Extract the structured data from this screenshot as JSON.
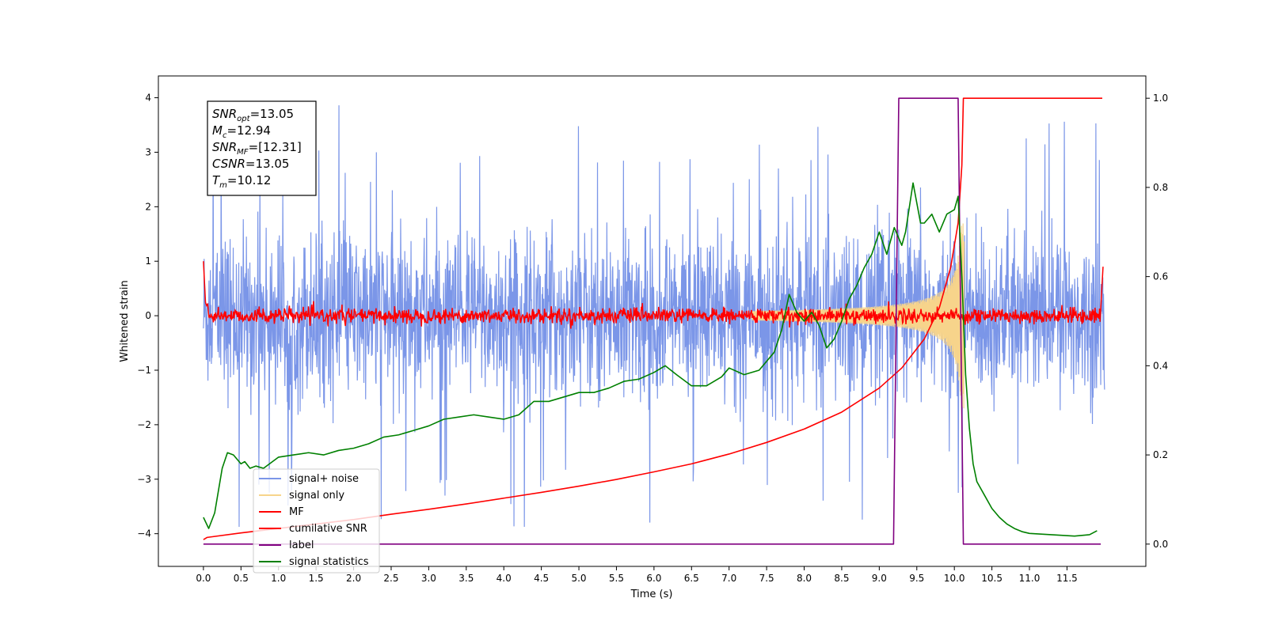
{
  "chart_data": {
    "type": "line",
    "xlabel": "Time (s)",
    "ylabel": "Whitened strain",
    "xlim": [
      -0.6,
      12.55
    ],
    "ylim": [
      -4.6,
      4.4
    ],
    "y2lim": [
      -0.05,
      1.05
    ],
    "xticks": [
      0.0,
      0.5,
      1.0,
      1.5,
      2.0,
      2.5,
      3.0,
      3.5,
      4.0,
      4.5,
      5.0,
      5.5,
      6.0,
      6.5,
      7.0,
      7.5,
      8.0,
      8.5,
      9.0,
      9.5,
      10.0,
      10.5,
      11.0,
      11.5
    ],
    "xtick_labels": [
      "0.0",
      "0.5",
      "1.0",
      "1.5",
      "2.0",
      "2.5",
      "3.0",
      "3.5",
      "4.0",
      "4.5",
      "5.0",
      "5.5",
      "6.0",
      "6.5",
      "7.0",
      "7.5",
      "8.0",
      "8.5",
      "9.0",
      "9.5",
      "10.0",
      "10.5",
      "11.0",
      "11.5"
    ],
    "yticks": [
      -4,
      -3,
      -2,
      -1,
      0,
      1,
      2,
      3,
      4
    ],
    "ytick_labels": [
      "−4",
      "−3",
      "−2",
      "−1",
      "0",
      "1",
      "2",
      "3",
      "4"
    ],
    "y2ticks": [
      0.0,
      0.2,
      0.4,
      0.6,
      0.8,
      1.0
    ],
    "y2tick_labels": [
      "0.0",
      "0.2",
      "0.4",
      "0.6",
      "0.8",
      "1.0"
    ],
    "grid": false,
    "legend_position": "lower-left",
    "annotation": {
      "lines": [
        {
          "sym": "SNR",
          "sub": "opt",
          "val": "=13.05"
        },
        {
          "sym": "M",
          "sub": "c",
          "val": "=12.94"
        },
        {
          "sym": "SNR",
          "sub": "MF",
          "val": "=[12.31]"
        },
        {
          "sym": "CSNR",
          "sub": "",
          "val": "=13.05"
        },
        {
          "sym": "T",
          "sub": "m",
          "val": "=10.12"
        }
      ]
    },
    "series": [
      {
        "name": "signal+ noise",
        "axis": "left",
        "color": "#7b96e8",
        "description": "whitened noise + signal, amplitude about ±2 with spikes to about ±4, t from 0 to 12"
      },
      {
        "name": "signal only",
        "axis": "left",
        "color": "#f7d48b",
        "description": "chirp envelope growing from ~0 near t=7.5 to ~±1.7 at t≈10.1 then ending"
      },
      {
        "name": "MF",
        "axis": "left",
        "color": "#ff0000",
        "description": "matched filter output, small noise around 0 (±0.25), starts at 1.0 and ends near 0.9"
      },
      {
        "name": "cumilative SNR",
        "axis": "right",
        "color": "#ff0000",
        "x": [
          0.0,
          0.05,
          0.5,
          1.0,
          1.5,
          2.0,
          2.5,
          3.0,
          3.5,
          4.0,
          4.5,
          5.0,
          5.5,
          6.0,
          6.5,
          7.0,
          7.5,
          8.0,
          8.5,
          9.0,
          9.3,
          9.6,
          9.8,
          9.95,
          10.05,
          10.1,
          10.12,
          10.2,
          11.0,
          11.97
        ],
        "y": [
          0.01,
          0.015,
          0.025,
          0.035,
          0.045,
          0.055,
          0.067,
          0.078,
          0.09,
          0.103,
          0.116,
          0.13,
          0.145,
          0.162,
          0.18,
          0.202,
          0.228,
          0.258,
          0.296,
          0.35,
          0.395,
          0.46,
          0.53,
          0.62,
          0.72,
          0.85,
          1.0,
          1.0,
          1.0,
          1.0
        ]
      },
      {
        "name": "label",
        "axis": "right",
        "color": "#800080",
        "x": [
          0.0,
          9.19,
          9.26,
          10.05,
          10.12,
          11.95
        ],
        "y": [
          0.0,
          0.0,
          1.0,
          1.0,
          0.0,
          0.0
        ]
      },
      {
        "name": "signal statistics",
        "axis": "right",
        "color": "#008000",
        "x": [
          0.0,
          0.07,
          0.15,
          0.25,
          0.32,
          0.4,
          0.5,
          0.55,
          0.62,
          0.7,
          0.8,
          1.0,
          1.2,
          1.4,
          1.6,
          1.8,
          2.0,
          2.2,
          2.4,
          2.6,
          2.8,
          3.0,
          3.2,
          3.4,
          3.6,
          3.8,
          4.0,
          4.2,
          4.4,
          4.6,
          4.8,
          5.0,
          5.2,
          5.4,
          5.6,
          5.8,
          6.0,
          6.15,
          6.3,
          6.5,
          6.7,
          6.9,
          7.0,
          7.2,
          7.4,
          7.6,
          7.7,
          7.8,
          7.9,
          8.0,
          8.1,
          8.2,
          8.3,
          8.4,
          8.5,
          8.6,
          8.7,
          8.8,
          8.9,
          9.0,
          9.1,
          9.2,
          9.3,
          9.35,
          9.45,
          9.55,
          9.6,
          9.7,
          9.8,
          9.9,
          10.0,
          10.05,
          10.1,
          10.15,
          10.2,
          10.25,
          10.3,
          10.4,
          10.5,
          10.6,
          10.7,
          10.8,
          10.9,
          11.0,
          11.2,
          11.4,
          11.6,
          11.8,
          11.9
        ],
        "y": [
          0.06,
          0.035,
          0.07,
          0.17,
          0.205,
          0.2,
          0.18,
          0.185,
          0.17,
          0.175,
          0.17,
          0.195,
          0.2,
          0.205,
          0.2,
          0.21,
          0.215,
          0.225,
          0.24,
          0.245,
          0.255,
          0.265,
          0.28,
          0.285,
          0.29,
          0.285,
          0.28,
          0.29,
          0.32,
          0.32,
          0.33,
          0.34,
          0.34,
          0.35,
          0.365,
          0.37,
          0.385,
          0.4,
          0.38,
          0.355,
          0.355,
          0.375,
          0.395,
          0.38,
          0.39,
          0.43,
          0.48,
          0.56,
          0.52,
          0.5,
          0.52,
          0.49,
          0.44,
          0.46,
          0.5,
          0.55,
          0.58,
          0.62,
          0.65,
          0.7,
          0.65,
          0.71,
          0.67,
          0.7,
          0.81,
          0.72,
          0.72,
          0.74,
          0.7,
          0.74,
          0.75,
          0.78,
          0.6,
          0.38,
          0.26,
          0.18,
          0.14,
          0.11,
          0.08,
          0.06,
          0.045,
          0.035,
          0.028,
          0.024,
          0.022,
          0.02,
          0.018,
          0.021,
          0.03
        ]
      }
    ]
  }
}
